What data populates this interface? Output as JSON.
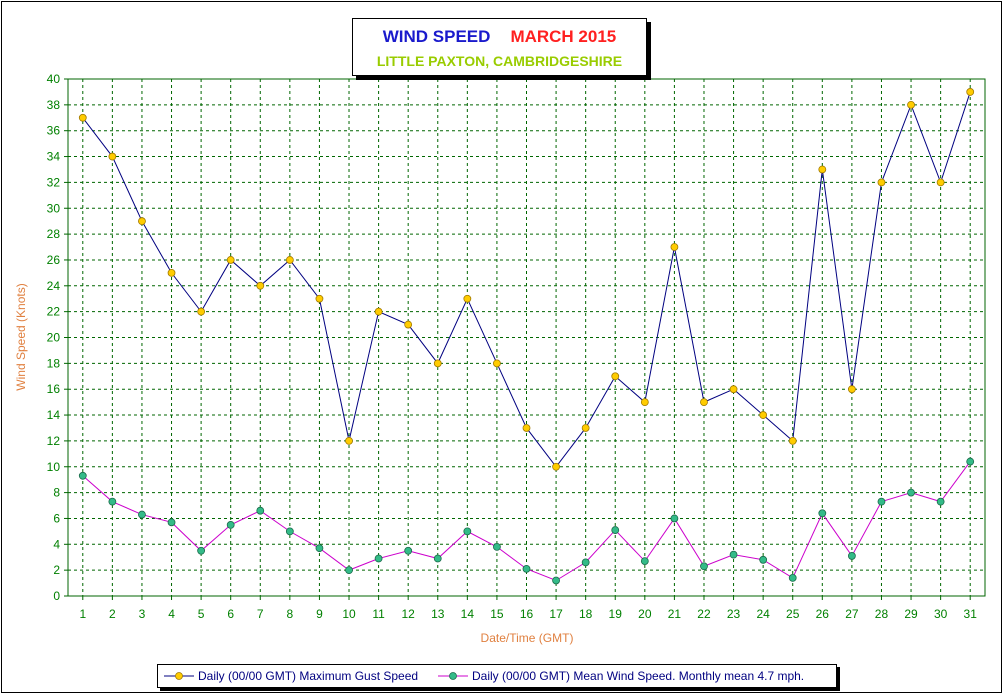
{
  "title": {
    "main": "WIND SPEED",
    "period": "MARCH 2015",
    "location": "LITTLE PAXTON, CAMBRIDGESHIRE"
  },
  "legend": {
    "gust": "Daily (00/00 GMT) Maximum Gust Speed",
    "mean": "Daily (00/00 GMT) Mean Wind Speed. Monthly mean 4.7 mph."
  },
  "colors": {
    "gust_line": "#000080",
    "gust_marker": "#ffcc00",
    "mean_line": "#cc00cc",
    "mean_marker": "#33bb88",
    "grid": "#006600",
    "axis_label": "#e08040",
    "tick_label": "#008000"
  },
  "chart_data": {
    "type": "line",
    "xlabel": "Date/Time (GMT)",
    "ylabel": "Wind Speed (Knots)",
    "ylim": [
      0,
      40
    ],
    "yticks": [
      0,
      2,
      4,
      6,
      8,
      10,
      12,
      14,
      16,
      18,
      20,
      22,
      24,
      26,
      28,
      30,
      32,
      34,
      36,
      38,
      40
    ],
    "x": [
      1,
      2,
      3,
      4,
      5,
      6,
      7,
      8,
      9,
      10,
      11,
      12,
      13,
      14,
      15,
      16,
      17,
      18,
      19,
      20,
      21,
      22,
      23,
      24,
      25,
      26,
      27,
      28,
      29,
      30,
      31
    ],
    "grid": true,
    "legend_position": "bottom",
    "series": [
      {
        "name": "Daily (00/00 GMT) Maximum Gust Speed",
        "values": [
          37,
          34,
          29,
          25,
          22,
          26,
          24,
          26,
          23,
          12,
          22,
          21,
          18,
          23,
          18,
          13,
          10,
          13,
          17,
          15,
          27,
          15,
          16,
          14,
          12,
          33,
          16,
          32,
          38,
          32,
          39
        ]
      },
      {
        "name": "Daily (00/00 GMT) Mean Wind Speed. Monthly mean 4.7 mph.",
        "values": [
          9.3,
          7.3,
          6.3,
          5.7,
          3.5,
          5.5,
          6.6,
          5.0,
          3.7,
          2.0,
          2.9,
          3.5,
          2.9,
          5.0,
          3.8,
          2.1,
          1.2,
          2.6,
          5.1,
          2.7,
          6.0,
          2.3,
          3.2,
          2.8,
          1.4,
          6.4,
          3.1,
          7.3,
          8.0,
          7.3,
          10.4
        ]
      }
    ]
  }
}
